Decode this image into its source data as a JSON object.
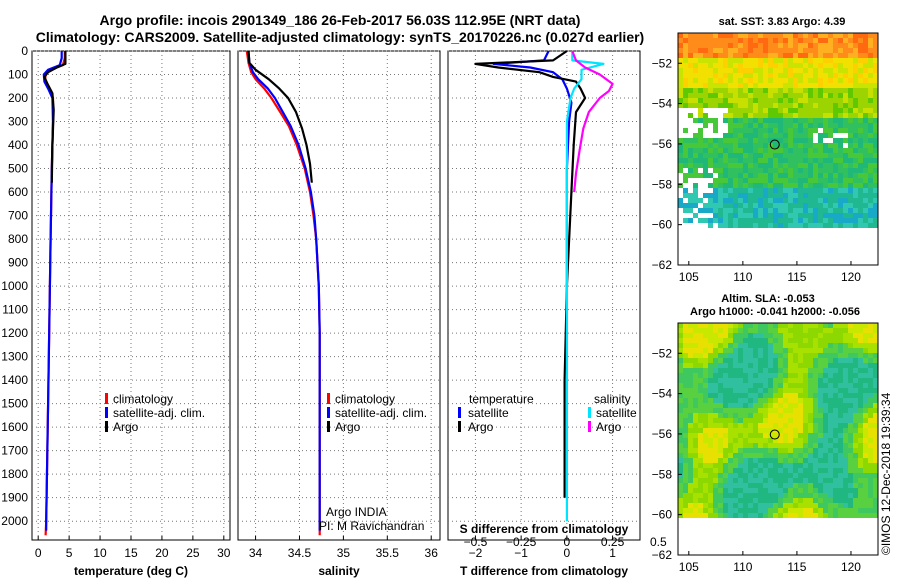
{
  "title_line1": "Argo profile: incois 2901349_186 26-Feb-2017 56.03S 112.95E (NRT data)",
  "title_line2": "Climatology: CARS2009. Satellite-adjusted climatology: synTS_20170226.nc (0.027d earlier)",
  "sst_title": "sat. SST: 3.83 Argo: 4.39",
  "sla_title_line1": "Altim. SLA: -0.053",
  "sla_title_line2": "Argo h1000: -0.041 h2000: -0.056",
  "timestamp": "©IMOS 12-Dec-2018 19:39:34",
  "credit_line1": "Argo INDIA",
  "credit_line2": "PI: M Ravichandran",
  "colors": {
    "climatology": "#ff0000",
    "satellite": "#0000ff",
    "argo": "#000000",
    "sat_salinity": "#00e5ff",
    "argo_salinity": "#ff00ff"
  },
  "legend_ts": {
    "items": [
      "climatology",
      "satellite-adj. clim.",
      "Argo"
    ]
  },
  "legend_diff": {
    "temperature_header": "temperature",
    "salinity_header": "salinity",
    "satellite": "satellite",
    "argo": "Argo"
  },
  "chart_data": [
    {
      "type": "line",
      "panel": "temperature",
      "xlabel": "temperature (deg C)",
      "ylabel": "",
      "xlim": [
        -1,
        31
      ],
      "ylim": [
        2080,
        0
      ],
      "xticks": [
        0,
        5,
        10,
        15,
        20,
        25,
        30
      ],
      "yticks": [
        0,
        100,
        200,
        300,
        400,
        500,
        600,
        700,
        800,
        900,
        1000,
        1100,
        1200,
        1300,
        1400,
        1500,
        1600,
        1700,
        1800,
        1900,
        2000
      ],
      "series": [
        {
          "name": "climatology",
          "depth": [
            0,
            30,
            60,
            80,
            100,
            130,
            160,
            200,
            300,
            500,
            800,
            1000,
            1500,
            2000,
            2060
          ],
          "values": [
            4.3,
            4.3,
            4.0,
            2.0,
            1.2,
            1.1,
            1.7,
            2.4,
            2.4,
            2.2,
            2.0,
            1.9,
            1.6,
            1.3,
            1.2
          ]
        },
        {
          "name": "satellite-adj. clim.",
          "depth": [
            0,
            30,
            60,
            80,
            100,
            130,
            160,
            200,
            300,
            500,
            800,
            1000,
            1500,
            2000,
            2040
          ],
          "values": [
            3.8,
            3.8,
            3.5,
            1.6,
            0.9,
            1.0,
            1.6,
            2.3,
            2.4,
            2.2,
            2.0,
            1.9,
            1.6,
            1.3,
            1.3
          ]
        },
        {
          "name": "Argo",
          "depth": [
            0,
            30,
            55,
            70,
            90,
            110,
            140,
            180,
            250,
            400,
            560
          ],
          "values": [
            4.4,
            4.4,
            4.4,
            3.0,
            1.6,
            1.0,
            1.5,
            2.3,
            2.5,
            2.3,
            2.2
          ]
        }
      ]
    },
    {
      "type": "line",
      "panel": "salinity",
      "xlabel": "salinity",
      "ylabel": "",
      "xlim": [
        33.8,
        36.1
      ],
      "ylim": [
        2080,
        0
      ],
      "xticks": [
        34,
        34.5,
        35,
        35.5,
        36
      ],
      "series": [
        {
          "name": "climatology",
          "depth": [
            0,
            50,
            90,
            120,
            160,
            200,
            260,
            320,
            400,
            500,
            600,
            700,
            800,
            1000,
            1200,
            1500,
            2000,
            2060
          ],
          "values": [
            33.9,
            33.92,
            33.95,
            34.0,
            34.1,
            34.18,
            34.28,
            34.38,
            34.47,
            34.56,
            34.62,
            34.66,
            34.69,
            34.72,
            34.73,
            34.73,
            34.73,
            34.73
          ]
        },
        {
          "name": "satellite-adj. clim.",
          "depth": [
            0,
            50,
            90,
            120,
            160,
            200,
            260,
            320,
            400,
            500,
            600,
            700,
            800,
            1000,
            1200,
            1500,
            2000,
            2040
          ],
          "values": [
            33.92,
            33.93,
            33.97,
            34.03,
            34.14,
            34.22,
            34.31,
            34.4,
            34.49,
            34.57,
            34.63,
            34.67,
            34.69,
            34.72,
            34.73,
            34.73,
            34.73,
            34.73
          ]
        },
        {
          "name": "Argo",
          "depth": [
            0,
            50,
            80,
            120,
            160,
            200,
            260,
            330,
            400,
            480,
            560
          ],
          "values": [
            33.92,
            33.93,
            34.0,
            34.15,
            34.27,
            34.37,
            34.46,
            34.53,
            34.58,
            34.62,
            34.64
          ]
        }
      ]
    },
    {
      "type": "line",
      "panel": "difference",
      "xlabel": "T difference from climatology",
      "x2label": "S difference from climatology",
      "xlim": [
        -2.6,
        1.6
      ],
      "x2lim": [
        -0.65,
        0.4
      ],
      "ylim": [
        2080,
        0
      ],
      "xticks": [
        -2,
        -1,
        0,
        1
      ],
      "x2ticks": [
        -0.5,
        -0.25,
        0,
        0.25,
        0.5
      ],
      "series": [
        {
          "name": "temperature satellite",
          "axis": "T",
          "depth": [
            0,
            40,
            55,
            70,
            90,
            120,
            160,
            220,
            300,
            500,
            1000
          ],
          "values": [
            -0.4,
            -0.5,
            -1.6,
            -0.8,
            -0.3,
            -0.1,
            0.0,
            0.1,
            0.05,
            0.0,
            0.0
          ]
        },
        {
          "name": "temperature Argo",
          "axis": "T",
          "depth": [
            0,
            40,
            55,
            70,
            90,
            110,
            130,
            160,
            200,
            260,
            400,
            600,
            1000,
            1400,
            1900
          ],
          "values": [
            0.0,
            -0.3,
            -2.0,
            -1.5,
            -0.6,
            -0.3,
            0.2,
            0.3,
            0.4,
            0.2,
            0.15,
            0.1,
            0.0,
            -0.05,
            -0.05
          ]
        },
        {
          "name": "salinity satellite",
          "axis": "S",
          "depth": [
            0,
            40,
            55,
            80,
            120,
            160,
            200,
            300,
            500,
            1000,
            1500,
            2000
          ],
          "values": [
            0.03,
            0.03,
            0.2,
            0.08,
            0.08,
            0.04,
            0.02,
            0.0,
            0.0,
            0.0,
            0.0,
            0.0
          ]
        },
        {
          "name": "salinity Argo",
          "axis": "S",
          "depth": [
            0,
            40,
            70,
            100,
            140,
            170,
            200,
            260,
            330,
            420,
            520,
            600
          ],
          "values": [
            0.03,
            0.05,
            0.1,
            0.18,
            0.25,
            0.23,
            0.18,
            0.12,
            0.09,
            0.07,
            0.05,
            0.04
          ]
        }
      ]
    },
    {
      "type": "heatmap",
      "panel": "sat-sst-map",
      "xlim": [
        104,
        122.5
      ],
      "ylim": [
        -62,
        -50.5
      ],
      "xticks": [
        105,
        110,
        115,
        120
      ],
      "yticks": [
        -52,
        -54,
        -56,
        -58,
        -60,
        -62
      ],
      "marker": [
        112.95,
        -56.03
      ]
    },
    {
      "type": "heatmap",
      "panel": "sla-map",
      "xlim": [
        104,
        122.5
      ],
      "ylim": [
        -62,
        -50.5
      ],
      "xticks": [
        105,
        110,
        115,
        120
      ],
      "yticks": [
        -52,
        -54,
        -56,
        -58,
        -60,
        -62
      ],
      "marker": [
        112.95,
        -56.03
      ]
    }
  ]
}
